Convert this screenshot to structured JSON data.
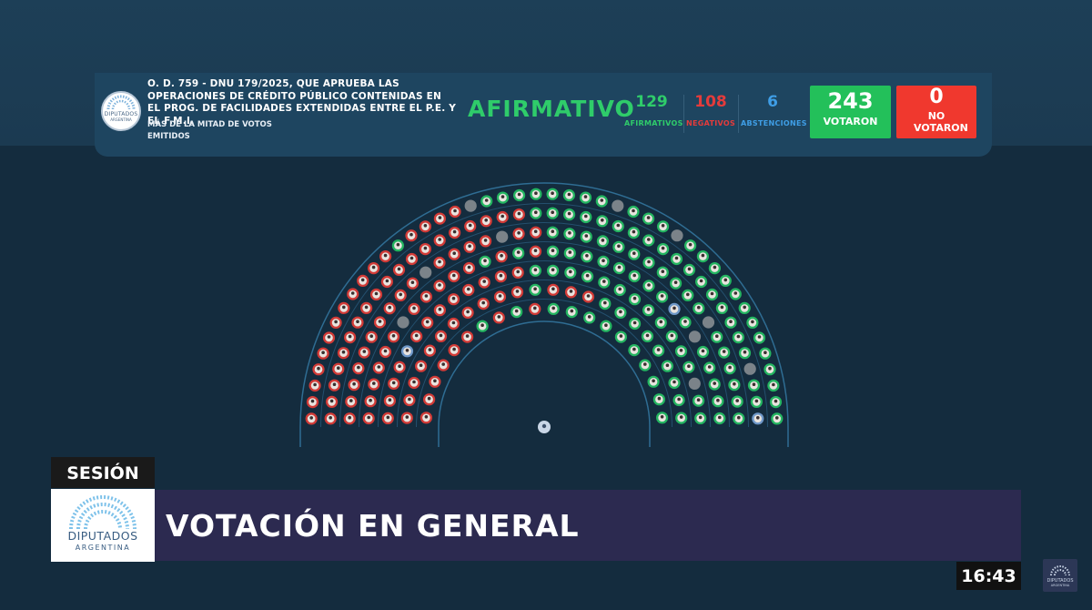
{
  "header": {
    "motion_title": "O. D. 759 - DNU 179/2025, QUE APRUEBA LAS OPERACIONES DE CRÉDITO PÚBLICO CONTENIDAS EN EL PROG. DE FACILIDADES EXTENDIDAS ENTRE EL P.E. Y EL F.M.I.",
    "majority_rule": "MÁS DE LA MITAD DE VOTOS EMITIDOS",
    "result": "AFIRMATIVO",
    "logo_text": "DIPUTADOS",
    "logo_subtext": "ARGENTINA"
  },
  "counts": [
    {
      "value": "129",
      "label": "AFIRMATIVOS",
      "color": "#2fcc6a"
    },
    {
      "value": "108",
      "label": "NEGATIVOS",
      "color": "#e53b3b"
    },
    {
      "value": "6",
      "label": "ABSTENCIONES",
      "color": "#3f9ee6"
    }
  ],
  "totals": {
    "voted": {
      "value": "243",
      "label": "VOTARON",
      "color": "#23c05a"
    },
    "not_voted": {
      "value": "0",
      "label": "NO VOTARON",
      "color": "#f0382e"
    }
  },
  "chamber": {
    "total_seats": 257,
    "colors": {
      "affirmative": "#24b561",
      "negative": "#d23b37",
      "abstention": "#6f98c9",
      "absent": "#7b8389",
      "president": "#c9d6e6"
    }
  },
  "lower_third": {
    "tag": "SESIÓN",
    "title": "VOTACIÓN EN GENERAL",
    "logo_text": "DIPUTADOS",
    "logo_subtext": "ARGENTINA"
  },
  "clock": "16:43",
  "bug": {
    "text": "DIPUTADOS",
    "subtext": "ARGENTINA"
  }
}
